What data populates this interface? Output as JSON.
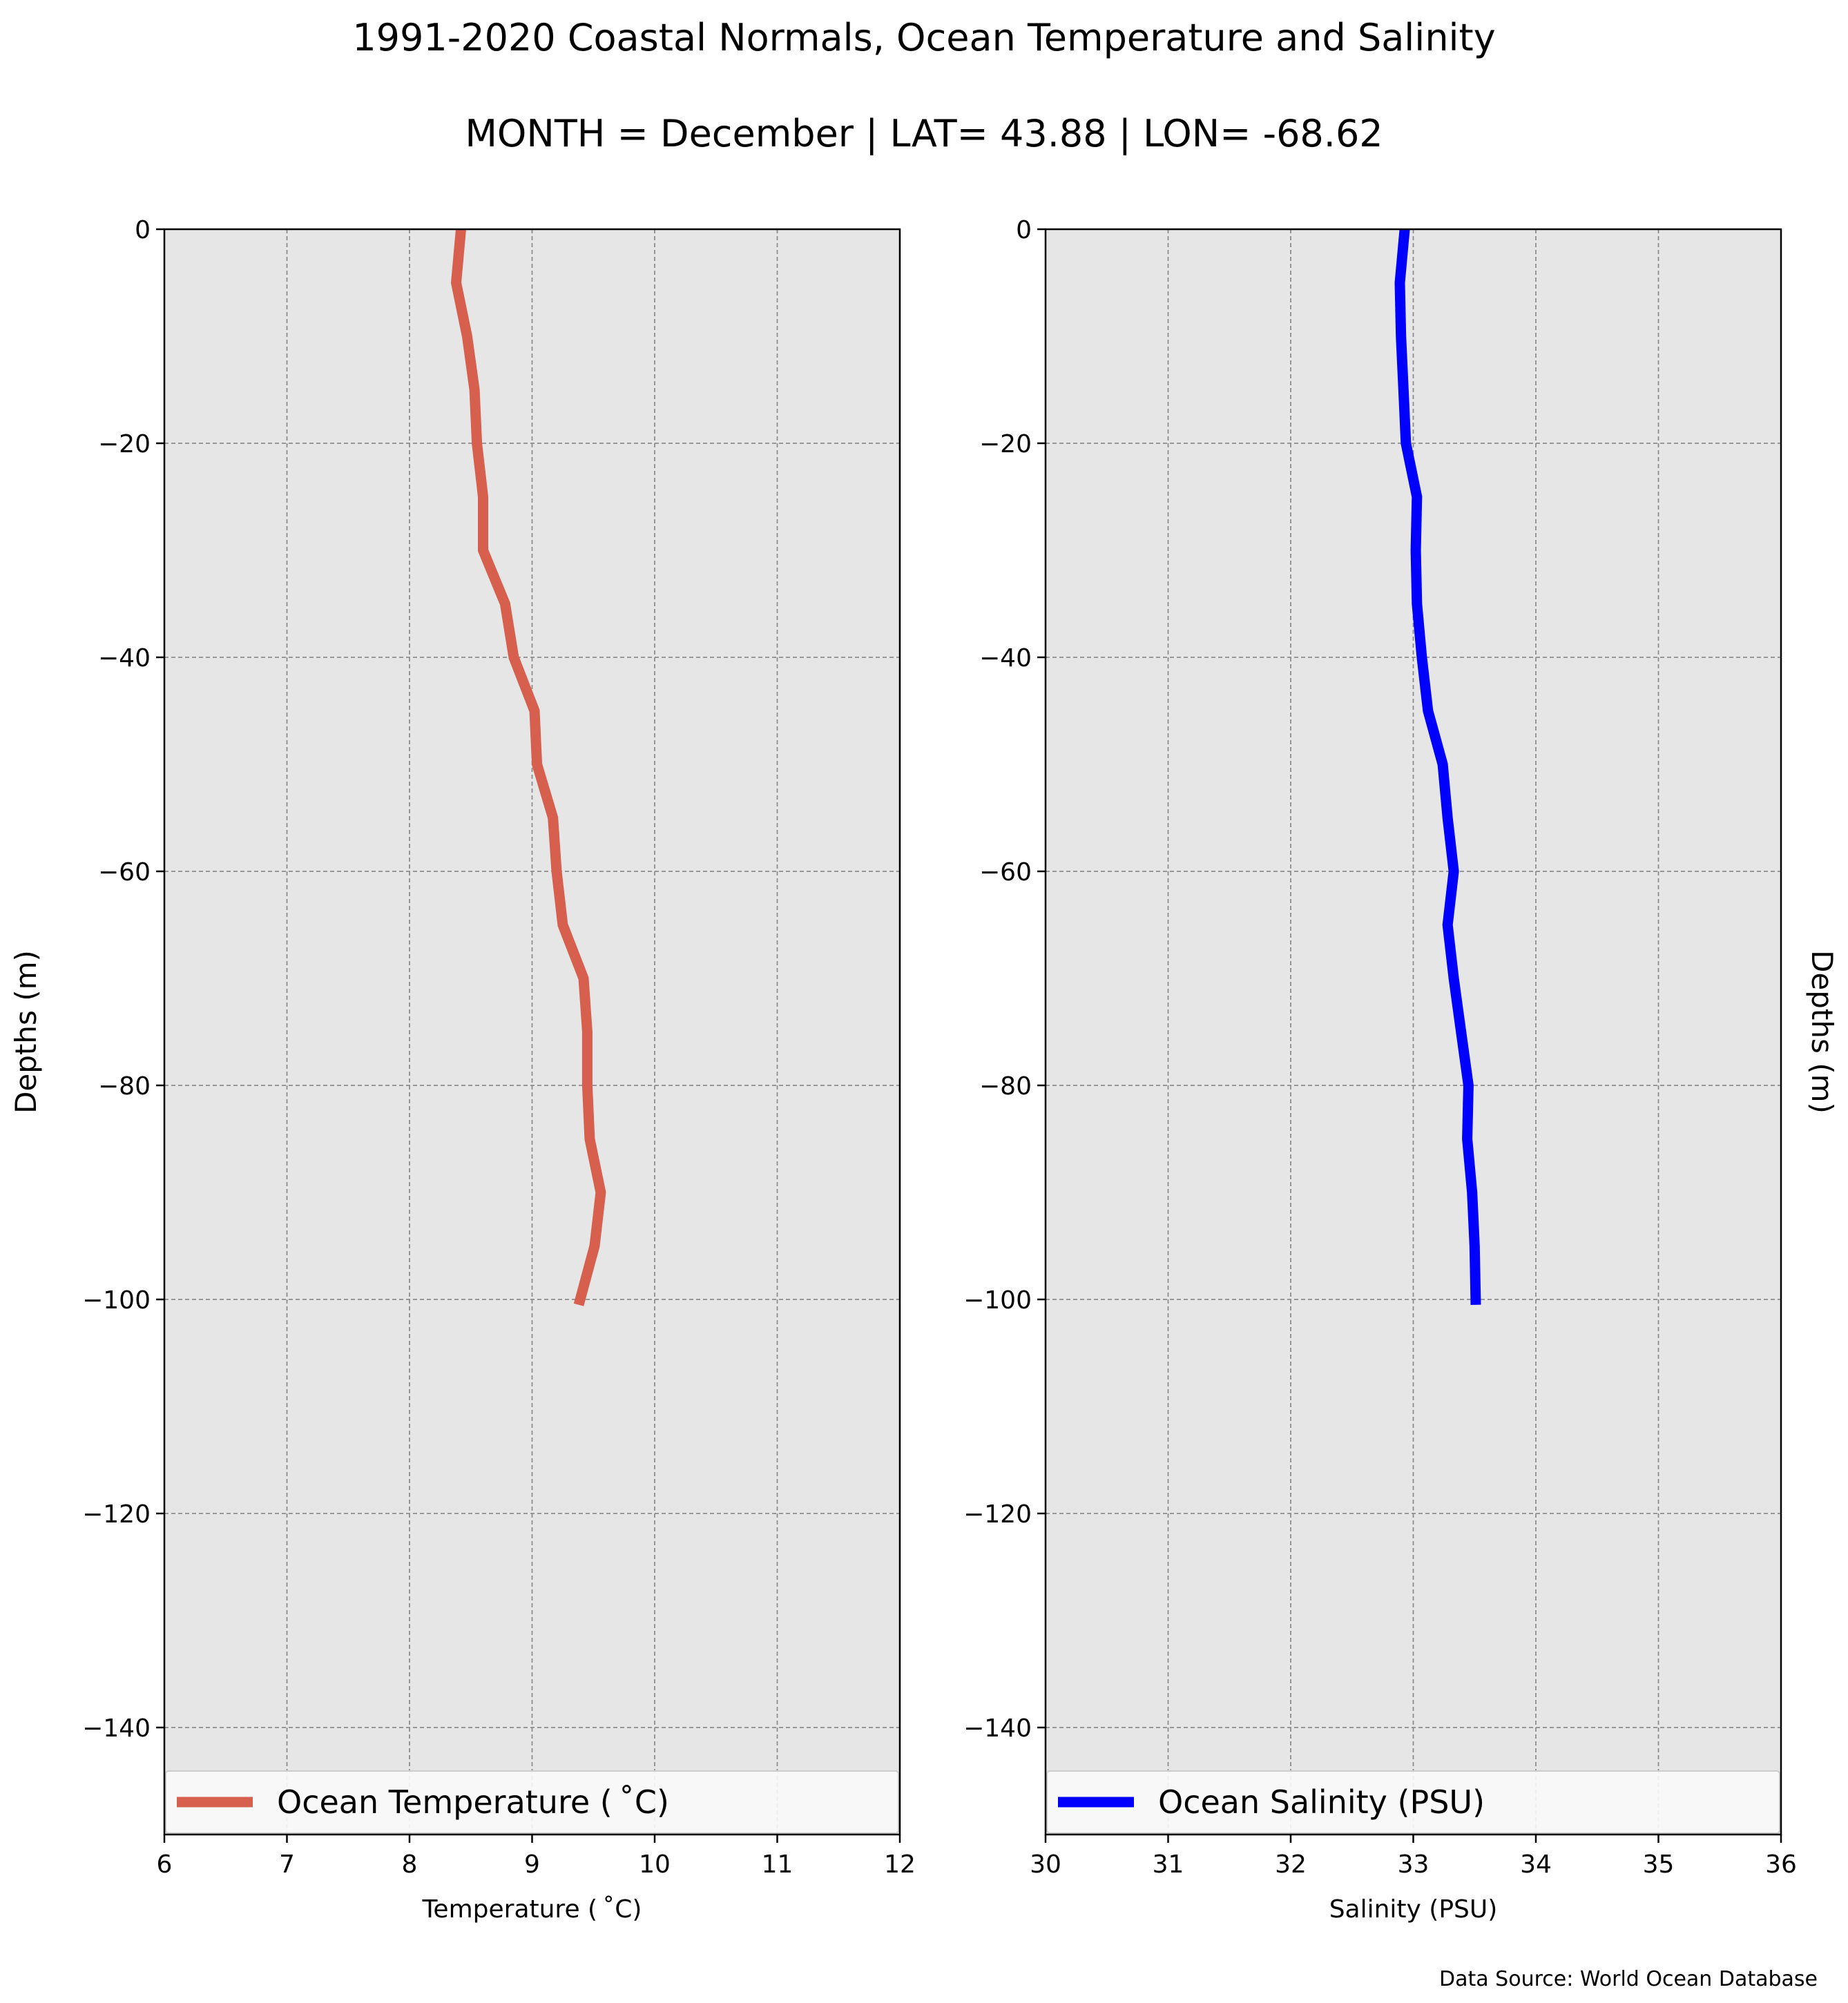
{
  "title": "1991-2020 Coastal Normals, Ocean Temperature and Salinity",
  "subtitle": "MONTH = December | LAT= 43.88 | LON= -68.62",
  "source": "Data Source: World Ocean Database",
  "chart_data": [
    {
      "type": "line",
      "xlabel": "Temperature ($^\\circ$C)",
      "xlabel_display": "Temperature ( ˚C)",
      "ylabel": "Depths (m)",
      "xlim": [
        6,
        12
      ],
      "ylim": [
        -150,
        0
      ],
      "xticks": [
        "6",
        "7",
        "8",
        "9",
        "10",
        "11",
        "12"
      ],
      "yticks": [
        "0",
        "−20",
        "−40",
        "−60",
        "−80",
        "−100",
        "−120",
        "−140"
      ],
      "grid": true,
      "legend_placement": "bottom",
      "series": [
        {
          "name": "Ocean Temperature ( ˚C)",
          "color": "#d65f4e",
          "x": [
            8.42,
            8.38,
            8.47,
            8.53,
            8.55,
            8.6,
            8.6,
            8.78,
            8.85,
            9.02,
            9.04,
            9.17,
            9.2,
            9.25,
            9.42,
            9.45,
            9.45,
            9.47,
            9.56,
            9.51,
            9.38
          ],
          "y": [
            0,
            -5,
            -10,
            -15,
            -20,
            -25,
            -30,
            -35,
            -40,
            -45,
            -50,
            -55,
            -60,
            -65,
            -70,
            -75,
            -80,
            -85,
            -90,
            -95,
            -100.5
          ]
        }
      ]
    },
    {
      "type": "line",
      "xlabel": "Salinity (PSU)",
      "ylabel": "Depths (m)",
      "xlim": [
        30,
        36
      ],
      "ylim": [
        -150,
        0
      ],
      "xticks": [
        "30",
        "31",
        "32",
        "33",
        "34",
        "35",
        "36"
      ],
      "yticks": [
        "0",
        "−20",
        "−40",
        "−60",
        "−80",
        "−100",
        "−120",
        "−140"
      ],
      "grid": true,
      "legend_placement": "bottom",
      "series": [
        {
          "name": "Ocean Salinity (PSU)",
          "color": "#0000ff",
          "x": [
            32.93,
            32.89,
            32.9,
            32.92,
            32.94,
            33.03,
            33.02,
            33.03,
            33.07,
            33.12,
            33.24,
            33.28,
            33.33,
            33.28,
            33.33,
            33.39,
            33.45,
            33.44,
            33.48,
            33.5,
            33.51
          ],
          "y": [
            0,
            -5,
            -10,
            -15,
            -20,
            -25,
            -30,
            -35,
            -40,
            -45,
            -50,
            -55,
            -60,
            -65,
            -70,
            -75,
            -80,
            -85,
            -90,
            -95,
            -100.5
          ]
        }
      ]
    }
  ]
}
